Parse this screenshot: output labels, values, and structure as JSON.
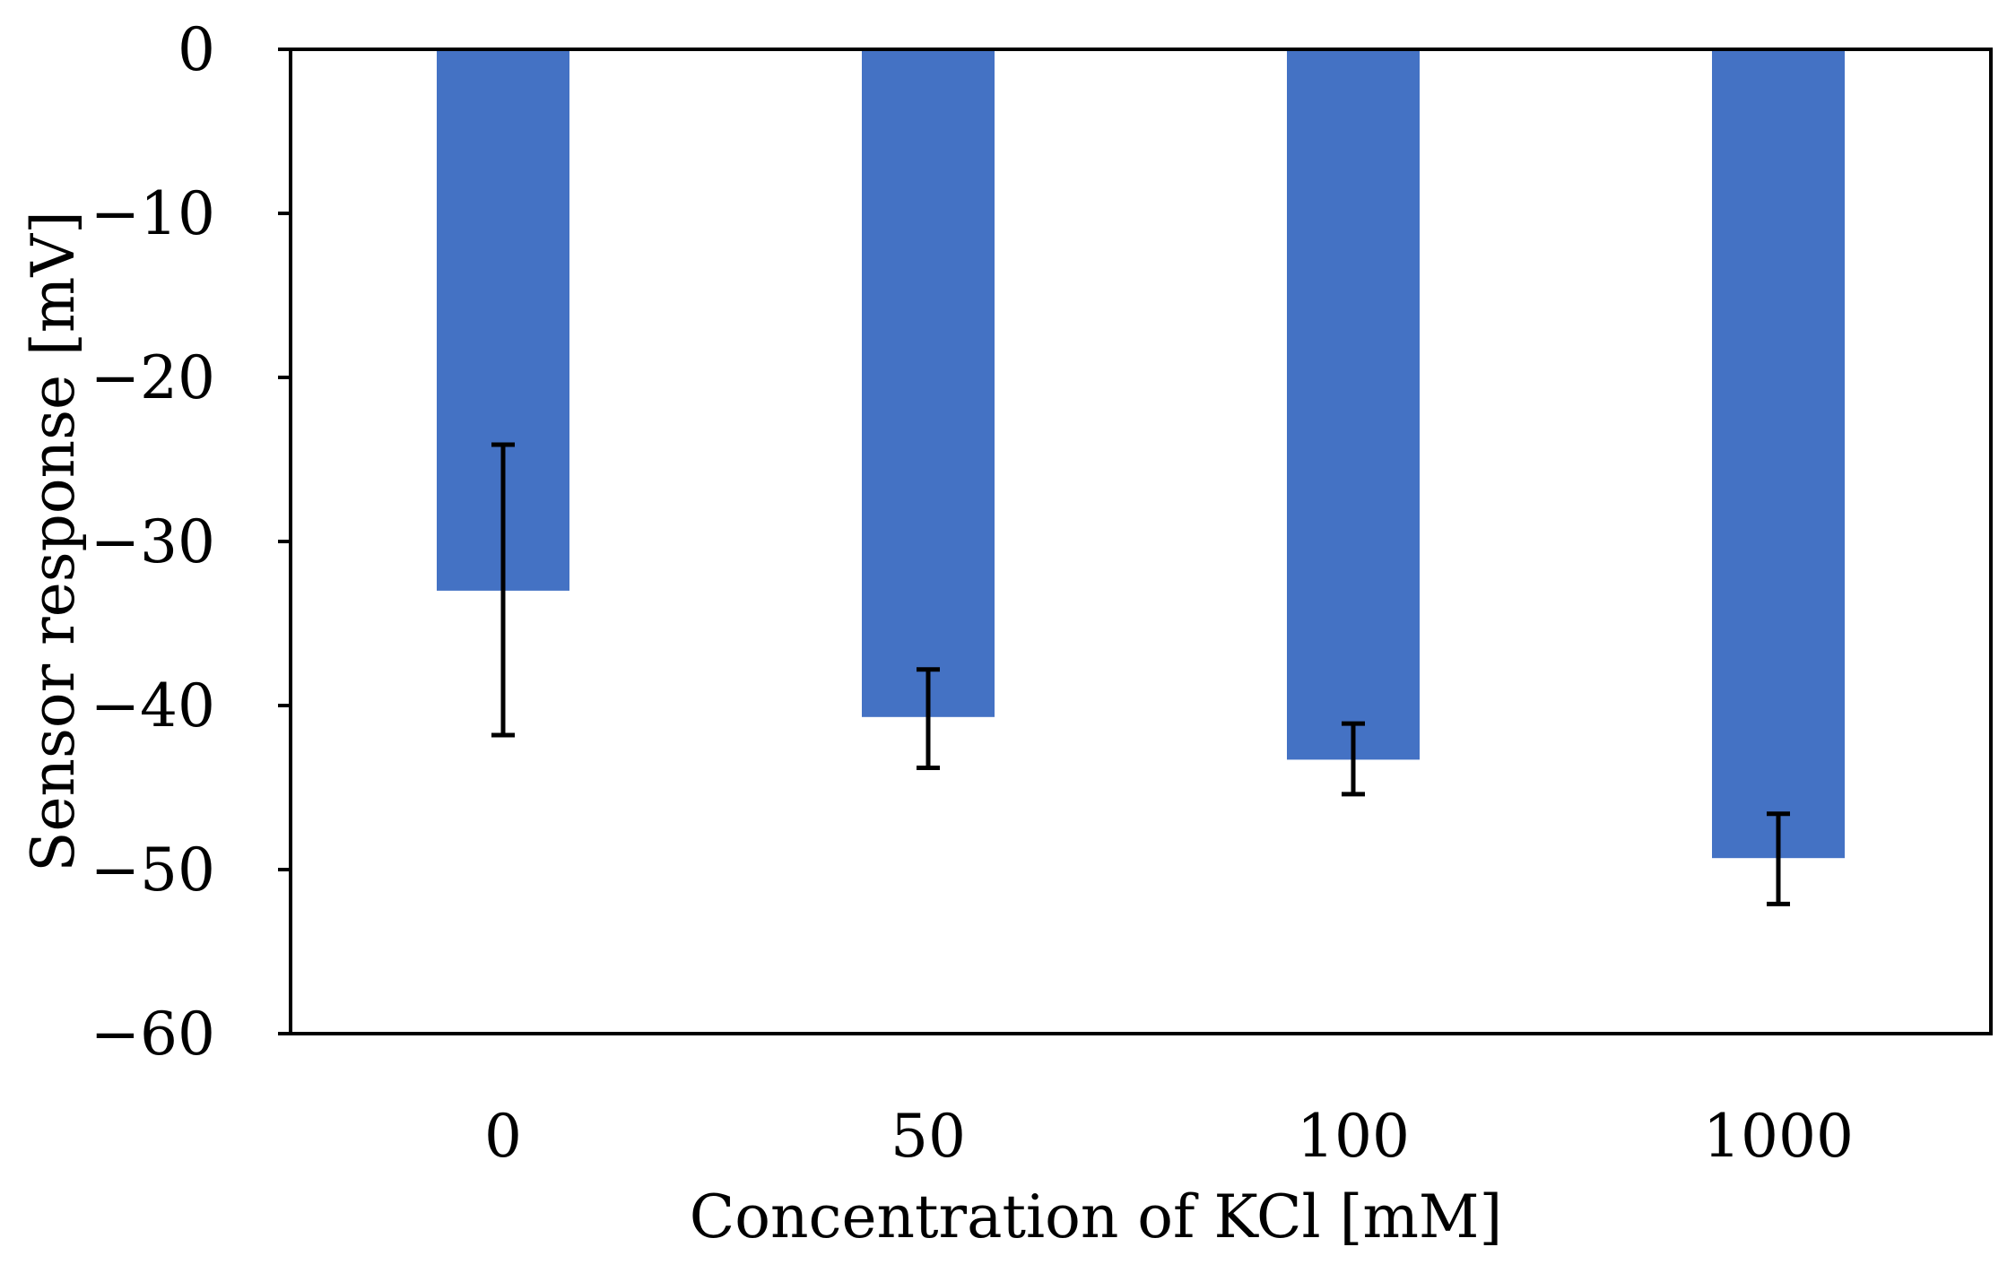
{
  "chart_data": {
    "type": "bar",
    "title": "",
    "xlabel": "Concentration of KCl [mM]",
    "ylabel": "Sensor response [mV]",
    "categories": [
      "0",
      "50",
      "100",
      "1000"
    ],
    "values": [
      -33,
      -40.7,
      -43.3,
      -49.3
    ],
    "error_low": [
      -41.8,
      -43.8,
      -45.4,
      -52.1
    ],
    "error_high": [
      -24.1,
      -37.8,
      -41.1,
      -46.6
    ],
    "ylim": [
      -60,
      0
    ],
    "yticks": [
      0,
      -10,
      -20,
      -30,
      -40,
      -50,
      -60
    ],
    "ytick_labels": [
      "0",
      "−10",
      "−20",
      "−30",
      "−40",
      "−50",
      "−60"
    ],
    "bar_color": "#4472C4",
    "error_color": "#000000",
    "axis_color": "#000000",
    "grid": false,
    "legend": "none"
  }
}
